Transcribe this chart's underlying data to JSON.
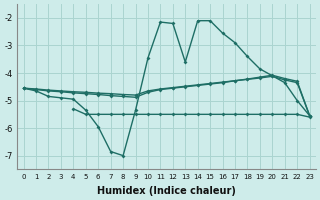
{
  "xlabel": "Humidex (Indice chaleur)",
  "background_color": "#ceecea",
  "grid_color": "#aad4d0",
  "line_color": "#1e6e65",
  "xlim": [
    -0.5,
    23.5
  ],
  "ylim": [
    -7.5,
    -1.5
  ],
  "yticks": [
    -7,
    -6,
    -5,
    -4,
    -3,
    -2
  ],
  "xticks": [
    0,
    1,
    2,
    3,
    4,
    5,
    6,
    7,
    8,
    9,
    10,
    11,
    12,
    13,
    14,
    15,
    16,
    17,
    18,
    19,
    20,
    21,
    22,
    23
  ],
  "line1_x": [
    0,
    1,
    2,
    3,
    4,
    5,
    6,
    7,
    8,
    9,
    10,
    11,
    12,
    13,
    14,
    15,
    16,
    17,
    18,
    19,
    20,
    21,
    22,
    23
  ],
  "line1_y": [
    -4.55,
    -4.65,
    -4.85,
    -4.9,
    -4.95,
    -5.35,
    -5.95,
    -6.85,
    -7.0,
    -5.35,
    -3.45,
    -2.15,
    -2.2,
    -3.6,
    -2.1,
    -2.1,
    -2.55,
    -2.9,
    -3.4,
    -3.85,
    -4.1,
    -4.35,
    -5.0,
    -5.55
  ],
  "line2_x": [
    0,
    1,
    2,
    3,
    4,
    5,
    6,
    7,
    8,
    9,
    10,
    11,
    12,
    13,
    14,
    15,
    16,
    17,
    18,
    19,
    20,
    21,
    22,
    23
  ],
  "line2_y": [
    -4.55,
    -4.6,
    -4.65,
    -4.68,
    -4.72,
    -4.75,
    -4.78,
    -4.82,
    -4.85,
    -4.88,
    -4.7,
    -4.6,
    -4.55,
    -4.5,
    -4.45,
    -4.4,
    -4.35,
    -4.28,
    -4.22,
    -4.15,
    -4.08,
    -4.2,
    -4.3,
    -5.55
  ],
  "line3_x": [
    0,
    1,
    2,
    3,
    4,
    5,
    6,
    7,
    8,
    9,
    10,
    11,
    12,
    13,
    14,
    15,
    16,
    17,
    18,
    19,
    20,
    21,
    22,
    23
  ],
  "line3_y": [
    -4.55,
    -4.58,
    -4.62,
    -4.65,
    -4.68,
    -4.7,
    -4.73,
    -4.75,
    -4.78,
    -4.8,
    -4.65,
    -4.58,
    -4.53,
    -4.48,
    -4.43,
    -4.38,
    -4.33,
    -4.28,
    -4.23,
    -4.18,
    -4.12,
    -4.25,
    -4.35,
    -5.55
  ],
  "line4_x": [
    4,
    5,
    6,
    7,
    8,
    9,
    10,
    11,
    12,
    13,
    14,
    15,
    16,
    17,
    18,
    19,
    20,
    21,
    22,
    23
  ],
  "line4_y": [
    -5.3,
    -5.5,
    -5.5,
    -5.5,
    -5.5,
    -5.5,
    -5.5,
    -5.5,
    -5.5,
    -5.5,
    -5.5,
    -5.5,
    -5.5,
    -5.5,
    -5.5,
    -5.5,
    -5.5,
    -5.5,
    -5.5,
    -5.6
  ]
}
